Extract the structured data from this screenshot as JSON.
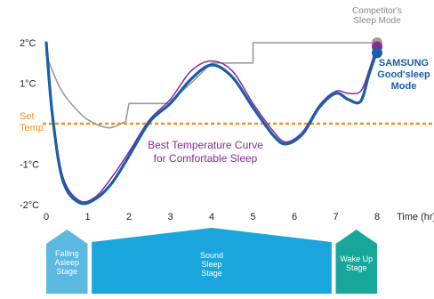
{
  "chart_data": {
    "type": "line",
    "xlabel": "Time (hr)",
    "x_ticks": [
      "0",
      "1",
      "2",
      "3",
      "4",
      "5",
      "6",
      "7",
      "8"
    ],
    "y_ticks": [
      {
        "value": 2,
        "label": "2°C"
      },
      {
        "value": 1,
        "label": "1°C"
      },
      {
        "value": -1,
        "label": "-1°C"
      },
      {
        "value": -2,
        "label": "-2°C"
      }
    ],
    "xlim": [
      0,
      9
    ],
    "ylim": [
      -2,
      2
    ],
    "set_temp": {
      "value": 0,
      "label_line1": "Set",
      "label_line2": "Temp.",
      "color": "#f0921e"
    },
    "series": [
      {
        "name": "Competitor's Sleep Mode",
        "label_lines": [
          "Competitor's",
          "Sleep Mode"
        ],
        "color": "#9a9a9a",
        "points": [
          [
            0,
            1.7
          ],
          [
            0.3,
            0.95
          ],
          [
            0.6,
            0.5
          ],
          [
            1.0,
            0.1
          ],
          [
            1.5,
            -0.1
          ],
          [
            1.85,
            0.02
          ],
          [
            1.92,
            0.05
          ],
          [
            2.0,
            0.5
          ],
          [
            3.0,
            0.5
          ],
          [
            3.0,
            0.55
          ],
          [
            3.5,
            1.0
          ],
          [
            4.0,
            1.5
          ],
          [
            4.5,
            1.5
          ],
          [
            5.0,
            1.5
          ],
          [
            5.0,
            2.0
          ],
          [
            7.5,
            2.0
          ],
          [
            8.0,
            2.0
          ]
        ]
      },
      {
        "name": "Best Temperature Curve for Comfortable Sleep",
        "label_lines": [
          "Best Temperature Curve",
          "for Comfortable Sleep"
        ],
        "color": "#8a2a96",
        "points": [
          [
            0,
            2.0
          ],
          [
            0.15,
            0.3
          ],
          [
            0.4,
            -1.3
          ],
          [
            0.8,
            -1.9
          ],
          [
            1.2,
            -1.8
          ],
          [
            1.6,
            -1.3
          ],
          [
            2.0,
            -0.7
          ],
          [
            2.5,
            0.1
          ],
          [
            3.0,
            0.6
          ],
          [
            3.5,
            1.3
          ],
          [
            4.0,
            1.55
          ],
          [
            4.5,
            1.3
          ],
          [
            5.0,
            0.5
          ],
          [
            5.5,
            -0.2
          ],
          [
            5.8,
            -0.45
          ],
          [
            6.2,
            -0.2
          ],
          [
            6.6,
            0.45
          ],
          [
            7.0,
            0.8
          ],
          [
            7.3,
            0.75
          ],
          [
            7.6,
            0.8
          ],
          [
            7.8,
            1.3
          ],
          [
            8.0,
            1.95
          ]
        ]
      },
      {
        "name": "SAMSUNG Good'sleep Mode",
        "label_lines": [
          "SAMSUNG",
          "Good'sleep",
          "Mode"
        ],
        "color": "#1a5ea8",
        "points": [
          [
            0,
            2.0
          ],
          [
            0.15,
            0.2
          ],
          [
            0.4,
            -1.4
          ],
          [
            0.8,
            -1.95
          ],
          [
            1.2,
            -1.85
          ],
          [
            1.6,
            -1.45
          ],
          [
            2.0,
            -0.8
          ],
          [
            2.5,
            0.05
          ],
          [
            3.0,
            0.5
          ],
          [
            3.5,
            1.1
          ],
          [
            4.0,
            1.45
          ],
          [
            4.5,
            1.15
          ],
          [
            5.0,
            0.4
          ],
          [
            5.5,
            -0.3
          ],
          [
            5.8,
            -0.5
          ],
          [
            6.2,
            -0.25
          ],
          [
            6.6,
            0.4
          ],
          [
            7.0,
            0.75
          ],
          [
            7.3,
            0.6
          ],
          [
            7.6,
            0.55
          ],
          [
            7.8,
            1.2
          ],
          [
            8.0,
            1.8
          ]
        ]
      }
    ],
    "stages": [
      {
        "label_lines": [
          "Falling",
          "Asleep",
          "Stage"
        ],
        "start": 0,
        "end": 1,
        "color": "#5bb8e0"
      },
      {
        "label_lines": [
          "Sound",
          "Sleep",
          "Stage"
        ],
        "start": 1,
        "end": 7,
        "color": "#1aa6dc"
      },
      {
        "label_lines": [
          "Wake Up",
          "Stage"
        ],
        "start": 7,
        "end": 8,
        "color": "#17a79b"
      }
    ],
    "grid": false
  }
}
